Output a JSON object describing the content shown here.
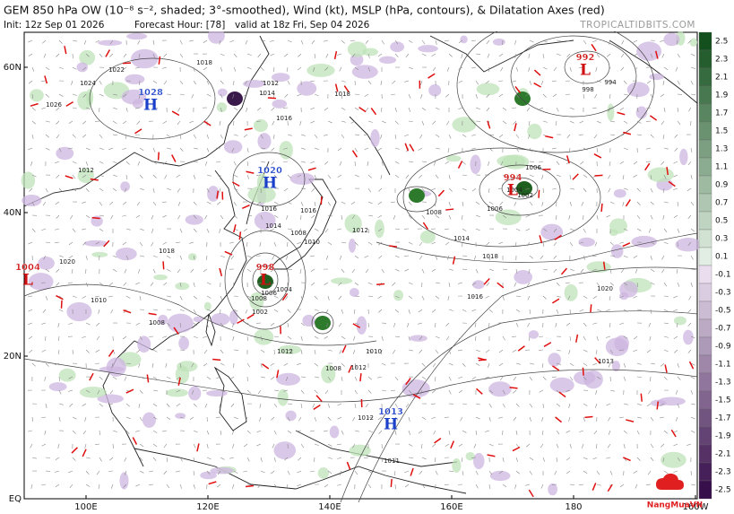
{
  "header": {
    "title": "GEM 850 hPa OW (10⁻⁸ s⁻², shaded; 3°-smoothed), Wind (kt), MSLP (hPa, contours), & Dilatation Axes (red)",
    "init": "Init: 12z Sep 01 2026",
    "forecast_hour": "Forecast Hour: [78]",
    "valid": "valid at 18z Fri, Sep 04 2026",
    "site": "TROPICALTIDBITS.COM"
  },
  "lat_labels": [
    "60N",
    "40N",
    "20N",
    "EQ"
  ],
  "lon_labels": [
    "100E",
    "120E",
    "140E",
    "160E",
    "180",
    "160W"
  ],
  "colorbar": {
    "labels": [
      "2.5",
      "2.3",
      "2.1",
      "1.9",
      "1.7",
      "1.5",
      "1.3",
      "1.1",
      "0.9",
      "0.7",
      "0.5",
      "0.3",
      "0.1",
      "-0.1",
      "-0.3",
      "-0.5",
      "-0.7",
      "-0.9",
      "-1.1",
      "-1.3",
      "-1.5",
      "-1.7",
      "-1.9",
      "-2.1",
      "-2.3",
      "-2.5"
    ]
  },
  "pressure_centers": [
    {
      "letter": "H",
      "value": "1028"
    },
    {
      "letter": "H",
      "value": "1020"
    },
    {
      "letter": "H",
      "value": "1013"
    },
    {
      "letter": "L",
      "value": "1004"
    },
    {
      "letter": "L",
      "value": "998"
    },
    {
      "letter": "L",
      "value": "992"
    },
    {
      "letter": "L",
      "value": "994"
    }
  ],
  "contour_labels": [
    "1022",
    "1024",
    "1026",
    "1018",
    "1012",
    "1014",
    "1016",
    "1018",
    "1012",
    "1008",
    "1010",
    "1008",
    "1006",
    "1004",
    "1002",
    "1016",
    "1018",
    "1014",
    "1016",
    "1020",
    "1012",
    "1010",
    "1008",
    "1012",
    "1010",
    "1012",
    "1008",
    "1006",
    "1004",
    "1002",
    "994",
    "998",
    "1008",
    "1006",
    "1014",
    "1016",
    "1018",
    "1020",
    "1013",
    "1012",
    "1011"
  ],
  "watermark": "NangMuaVN"
}
